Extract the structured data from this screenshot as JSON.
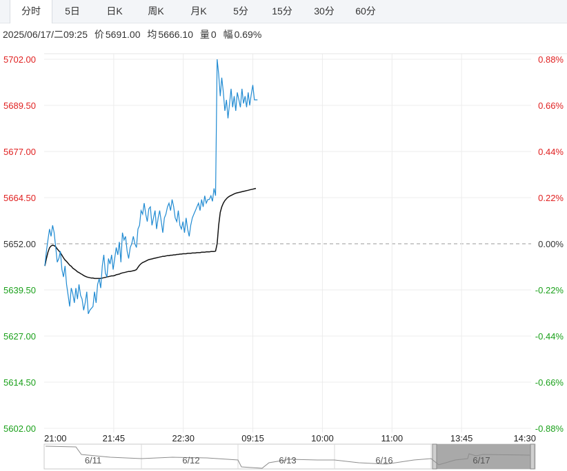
{
  "tabs": [
    {
      "label": "分时",
      "active": true
    },
    {
      "label": "5日",
      "active": false
    },
    {
      "label": "日K",
      "active": false
    },
    {
      "label": "周K",
      "active": false
    },
    {
      "label": "月K",
      "active": false
    },
    {
      "label": "5分",
      "active": false
    },
    {
      "label": "15分",
      "active": false
    },
    {
      "label": "30分",
      "active": false
    },
    {
      "label": "60分",
      "active": false
    }
  ],
  "info": {
    "datetime": "2025/06/17/二09:25",
    "price_label": "价",
    "price": "5691.00",
    "avg_label": "均",
    "avg": "5666.10",
    "vol_label": "量",
    "vol": "0",
    "change_label": "幅",
    "change": "0.69%"
  },
  "colors": {
    "up": "#e02020",
    "down": "#1aa01a",
    "price_line": "#1f8ad2",
    "avg_line": "#111111",
    "flat": "#333333"
  },
  "chart_data": {
    "type": "line",
    "y_ticks_left": [
      "5702.00",
      "5689.50",
      "5677.00",
      "5664.50",
      "5652.00",
      "5639.50",
      "5627.00",
      "5614.50",
      "5602.00"
    ],
    "y_ticks_right": [
      "0.88%",
      "0.66%",
      "0.44%",
      "0.22%",
      "0.00%",
      "-0.22%",
      "-0.44%",
      "-0.66%",
      "-0.88%"
    ],
    "ylim": [
      5602.0,
      5702.0
    ],
    "prev_close": 5652.0,
    "x_ticks": [
      "21:00",
      "21:45",
      "22:30",
      "09:15",
      "10:00",
      "11:00",
      "13:45",
      "14:30"
    ],
    "series": [
      {
        "values": [
          5646.0,
          5650.0,
          5653.0,
          5656.0,
          5654.0,
          5657.0,
          5655.0,
          5651.0,
          5647.0,
          5648.0,
          5650.0,
          5645.0,
          5643.0,
          5646.0,
          5641.0,
          5638.0,
          5635.0,
          5640.0,
          5638.5,
          5636.0,
          5640.0,
          5637.0,
          5641.0,
          5638.0,
          5637.0,
          5634.0,
          5636.0,
          5639.0,
          5633.0,
          5634.0,
          5634.5,
          5635.0,
          5639.0,
          5636.0,
          5641.0,
          5642.5,
          5640.0,
          5646.0,
          5649.0,
          5644.0,
          5643.0,
          5648.0,
          5646.5,
          5649.0,
          5645.0,
          5648.0,
          5651.0,
          5649.0,
          5652.5,
          5647.0,
          5655.0,
          5653.0,
          5654.0,
          5650.0,
          5648.0,
          5651.0,
          5652.0,
          5654.0,
          5652.0,
          5651.0,
          5656.0,
          5657.0,
          5661.0,
          5660.0,
          5663.0,
          5660.0,
          5658.0,
          5661.5,
          5662.0,
          5657.0,
          5659.0,
          5661.0,
          5656.0,
          5659.0,
          5661.0,
          5658.0,
          5655.0,
          5659.0,
          5660.0,
          5662.0,
          5663.0,
          5661.0,
          5664.0,
          5662.0,
          5659.0,
          5658.0,
          5661.0,
          5657.0,
          5656.0,
          5658.0,
          5655.0,
          5659.0,
          5656.0,
          5654.0,
          5657.0,
          5659.0,
          5660.0,
          5661.0,
          5662.0,
          5663.0,
          5661.0,
          5664.0,
          5662.0,
          5665.0,
          5663.0,
          5664.0,
          5664.0,
          5665.0,
          5663.5,
          5667.0,
          5665.0,
          5702.0,
          5698.0,
          5692.0,
          5697.0,
          5693.0,
          5688.0,
          5691.0,
          5686.0,
          5690.0,
          5694.0,
          5689.0,
          5692.0,
          5688.0,
          5693.0,
          5691.0,
          5689.0,
          5694.0,
          5690.0,
          5692.0,
          5689.0,
          5693.0,
          5689.5,
          5692.5,
          5695.0,
          5691.0,
          5691.0,
          5691.0
        ],
        "avg": [
          5646.0,
          5648.0,
          5649.7,
          5650.9,
          5651.4,
          5651.6,
          5651.5,
          5651.2,
          5650.6,
          5650.1,
          5649.6,
          5648.9,
          5648.2,
          5647.6,
          5647.2,
          5646.7,
          5646.2,
          5645.9,
          5645.4,
          5645.1,
          5644.8,
          5644.4,
          5644.2,
          5643.9,
          5643.7,
          5643.4,
          5643.2,
          5643.0,
          5642.9,
          5642.8,
          5642.7,
          5642.7,
          5642.6,
          5642.6,
          5642.6,
          5642.6,
          5642.6,
          5642.7,
          5642.8,
          5642.9,
          5643.0,
          5643.1,
          5643.2,
          5643.3,
          5643.3,
          5643.4,
          5643.6,
          5643.7,
          5643.8,
          5644.0,
          5644.1,
          5644.2,
          5644.3,
          5644.4,
          5644.5,
          5644.5,
          5644.6,
          5644.7,
          5644.8,
          5645.0,
          5645.6,
          5646.2,
          5646.6,
          5646.9,
          5647.1,
          5647.3,
          5647.5,
          5647.7,
          5647.8,
          5647.9,
          5648.0,
          5648.1,
          5648.2,
          5648.3,
          5648.4,
          5648.5,
          5648.6,
          5648.6,
          5648.7,
          5648.8,
          5648.8,
          5648.9,
          5648.9,
          5649.0,
          5649.0,
          5649.1,
          5649.1,
          5649.2,
          5649.2,
          5649.3,
          5649.3,
          5649.3,
          5649.4,
          5649.4,
          5649.4,
          5649.5,
          5649.5,
          5649.5,
          5649.6,
          5649.6,
          5649.6,
          5649.7,
          5649.7,
          5649.7,
          5649.8,
          5649.8,
          5649.8,
          5649.9,
          5649.9,
          5649.9,
          5650.0,
          5652.0,
          5657.0,
          5660.5,
          5662.0,
          5663.0,
          5663.7,
          5664.2,
          5664.6,
          5664.9,
          5665.1,
          5665.3,
          5665.5,
          5665.7,
          5665.8,
          5665.9,
          5666.0,
          5666.1,
          5666.2,
          5666.3,
          5666.4,
          5666.5,
          5666.6,
          5666.7,
          5666.8,
          5666.9,
          5667.0
        ]
      }
    ]
  },
  "navigator": {
    "labels": [
      "6/11",
      "6/12",
      "6/13",
      "6/16",
      "6/17"
    ]
  }
}
